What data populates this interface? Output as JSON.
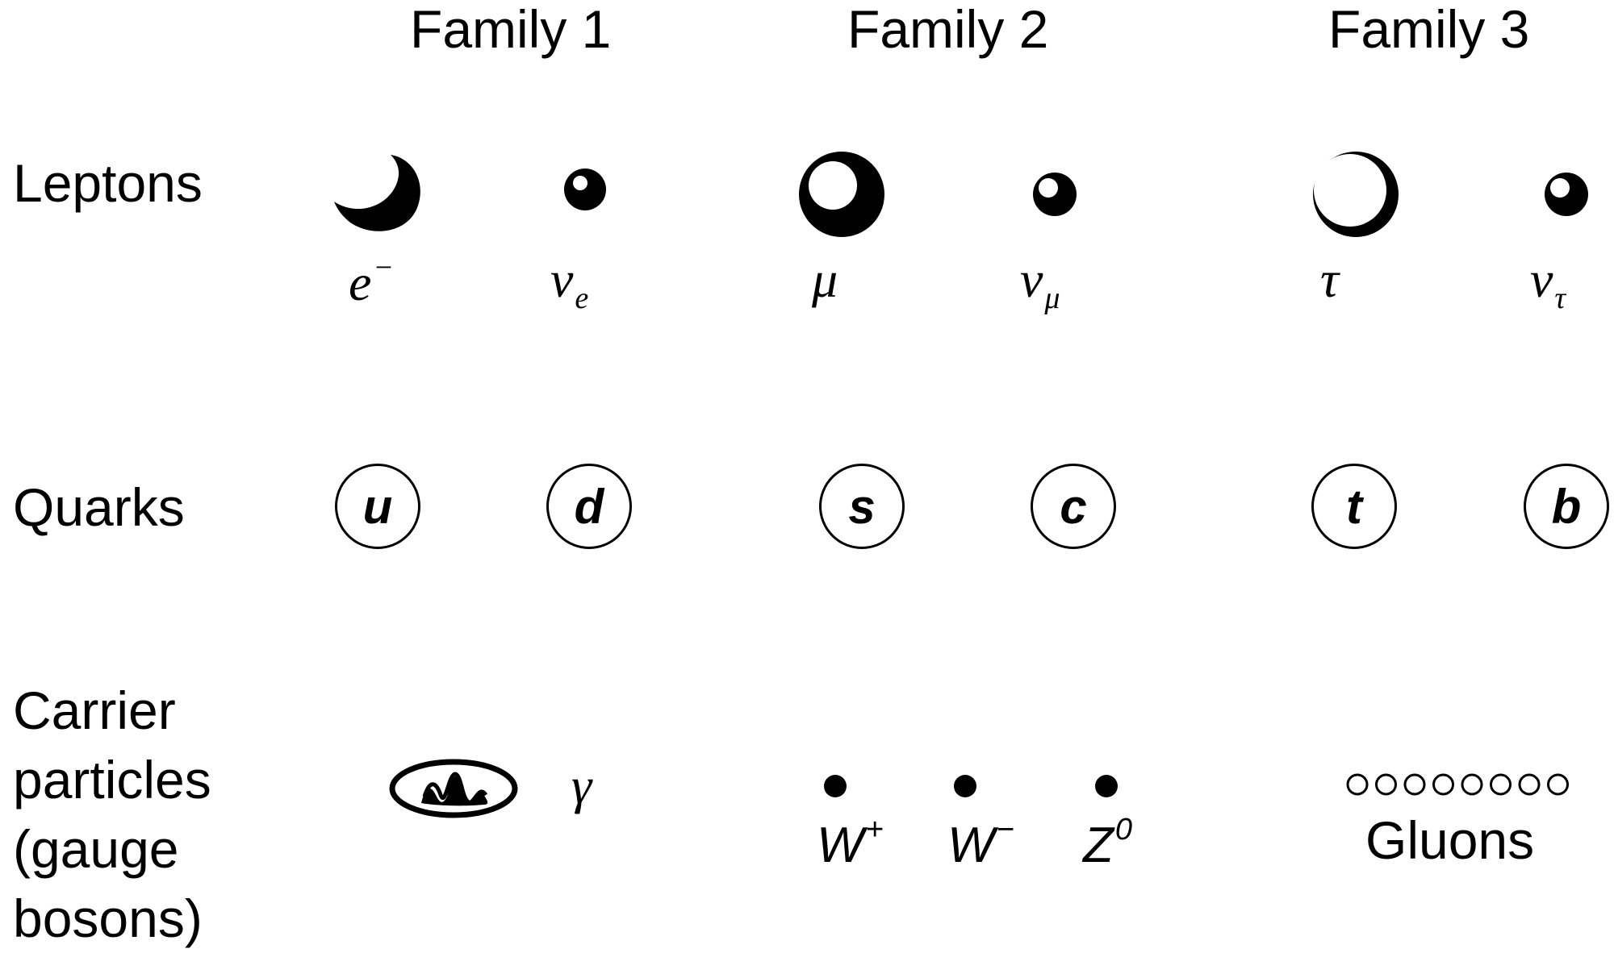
{
  "families": [
    "Family 1",
    "Family 2",
    "Family 3"
  ],
  "rows": {
    "leptons": "Leptons",
    "quarks": "Quarks",
    "carriers": [
      "Carrier",
      "particles",
      "(gauge",
      "bosons)"
    ]
  },
  "leptons": [
    {
      "base": "e",
      "sup": "−",
      "sub": "",
      "icon": "electron-crescent-icon"
    },
    {
      "base": "ν",
      "sup": "",
      "sub": "e",
      "icon": "electron-neutrino-sphere-icon"
    },
    {
      "base": "μ",
      "sup": "",
      "sub": "",
      "icon": "muon-sphere-icon"
    },
    {
      "base": "ν",
      "sup": "",
      "sub": "μ",
      "icon": "muon-neutrino-sphere-icon"
    },
    {
      "base": "τ",
      "sup": "",
      "sub": "",
      "icon": "tau-sphere-icon"
    },
    {
      "base": "ν",
      "sup": "",
      "sub": "τ",
      "icon": "tau-neutrino-sphere-icon"
    }
  ],
  "quarks": [
    "u",
    "d",
    "s",
    "c",
    "t",
    "b"
  ],
  "carriers": {
    "photon": "γ",
    "photon_icon": "photon-wave-ellipse-icon",
    "weak": [
      {
        "base": "W",
        "sup": "+"
      },
      {
        "base": "W",
        "sup": "−"
      },
      {
        "base": "Z",
        "sup": "0"
      }
    ],
    "gluons": "Gluons",
    "gluon_count": 8
  }
}
